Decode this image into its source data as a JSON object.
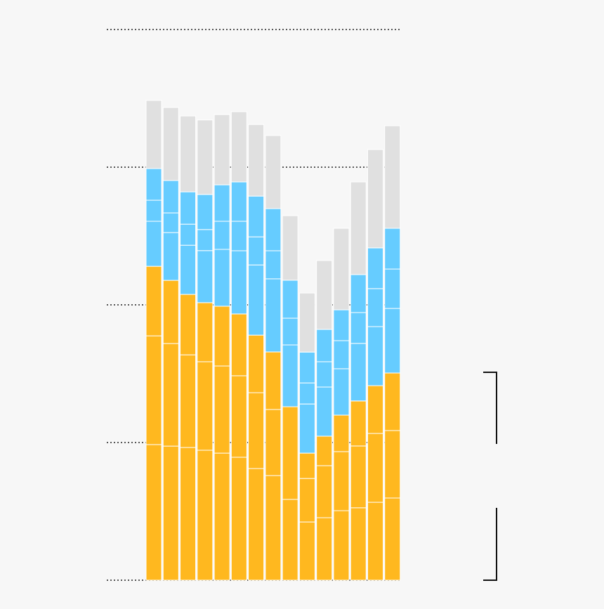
{
  "chart_data": {
    "type": "stacked-bar",
    "ylim": [
      0,
      400
    ],
    "yticks": [
      0,
      100,
      200,
      300,
      400
    ],
    "grid": true,
    "series": [
      {
        "color": "#ffb81f",
        "values": [
          98.5,
          97.4,
          96.4,
          94.4,
          92.3,
          89.3,
          81.1,
          76,
          58.7,
          42.3,
          45.4,
          50.5,
          52.6,
          56.6,
          59.7
        ]
      },
      {
        "color": "#ffb81f",
        "values": [
          79,
          74.5,
          67.3,
          64.3,
          63.3,
          59.2,
          55.1,
          48,
          67.3,
          31.6,
          37.8,
          42.9,
          44.9,
          50,
          49
        ]
      },
      {
        "color": "#ffb81f",
        "values": [
          50.5,
          45.9,
          43.9,
          42.9,
          43.4,
          44.9,
          41.8,
          41.8,
          0,
          18.4,
          21.4,
          26.5,
          32.7,
          34.7,
          41.8
        ]
      },
      {
        "color": "#66ccff",
        "values": [
          32.7,
          34.7,
          35.7,
          37.8,
          41.3,
          45.9,
          51,
          53.1,
          44.9,
          35.7,
          35.7,
          33.7,
          41.8,
          42.9,
          46.9
        ]
      },
      {
        "color": "#66ccff",
        "values": [
          15.3,
          14.3,
          15.3,
          15.3,
          20.4,
          21.4,
          20.4,
          20.4,
          19.4,
          15.3,
          18.4,
          20.4,
          22.4,
          27.6,
          28.6
        ]
      },
      {
        "color": "#66ccff",
        "values": [
          23,
          23.5,
          23.5,
          25.5,
          26.5,
          28.6,
          29.6,
          30.6,
          27.6,
          22.4,
          23.5,
          22.4,
          27.6,
          29.6,
          29.6
        ]
      },
      {
        "color": "#e0e0e0",
        "values": [
          49.5,
          53.1,
          55.1,
          54.1,
          51,
          51,
          52,
          53.1,
          46.9,
          42.9,
          50,
          59.2,
          67.3,
          71.4,
          74.5
        ]
      }
    ]
  }
}
